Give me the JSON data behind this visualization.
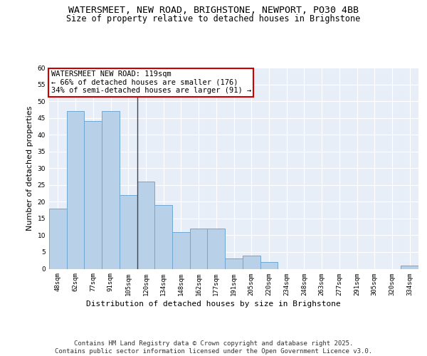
{
  "title_line1": "WATERSMEET, NEW ROAD, BRIGHSTONE, NEWPORT, PO30 4BB",
  "title_line2": "Size of property relative to detached houses in Brighstone",
  "xlabel": "Distribution of detached houses by size in Brighstone",
  "ylabel": "Number of detached properties",
  "categories": [
    "48sqm",
    "62sqm",
    "77sqm",
    "91sqm",
    "105sqm",
    "120sqm",
    "134sqm",
    "148sqm",
    "162sqm",
    "177sqm",
    "191sqm",
    "205sqm",
    "220sqm",
    "234sqm",
    "248sqm",
    "263sqm",
    "277sqm",
    "291sqm",
    "305sqm",
    "320sqm",
    "334sqm"
  ],
  "values": [
    18,
    47,
    44,
    47,
    22,
    26,
    19,
    11,
    12,
    12,
    3,
    4,
    2,
    0,
    0,
    0,
    0,
    0,
    0,
    0,
    1
  ],
  "bar_color": "#b8d0e8",
  "bar_edge_color": "#6fa8d0",
  "highlight_line_index": 5,
  "highlight_line_color": "#444444",
  "annotation_text": "WATERSMEET NEW ROAD: 119sqm\n← 66% of detached houses are smaller (176)\n34% of semi-detached houses are larger (91) →",
  "annotation_box_color": "#ffffff",
  "annotation_box_edge": "#cc0000",
  "ylim": [
    0,
    60
  ],
  "yticks": [
    0,
    5,
    10,
    15,
    20,
    25,
    30,
    35,
    40,
    45,
    50,
    55,
    60
  ],
  "bg_color": "#e8eef8",
  "footer": "Contains HM Land Registry data © Crown copyright and database right 2025.\nContains public sector information licensed under the Open Government Licence v3.0.",
  "title_fontsize": 9.5,
  "subtitle_fontsize": 8.5,
  "axis_label_fontsize": 8,
  "tick_fontsize": 6.5,
  "annotation_fontsize": 7.5,
  "footer_fontsize": 6.5
}
